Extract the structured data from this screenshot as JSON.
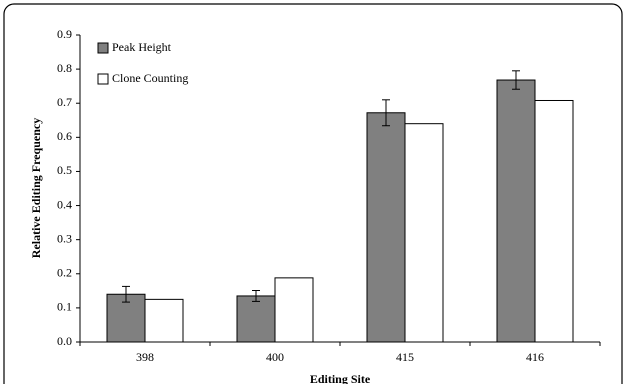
{
  "chart_data": {
    "type": "bar",
    "x_label": "Editing Site",
    "y_label": "Relative Editing Frequency",
    "categories": [
      "398",
      "400",
      "415",
      "416"
    ],
    "series": [
      {
        "name": "Peak Height",
        "color": "#808080",
        "values": [
          0.14,
          0.135,
          0.672,
          0.768
        ],
        "errors": [
          0.023,
          0.016,
          0.038,
          0.027
        ]
      },
      {
        "name": "Clone Counting",
        "color": "#ffffff",
        "values": [
          0.125,
          0.188,
          0.64,
          0.708
        ]
      }
    ],
    "ylim": [
      0,
      0.9
    ],
    "yticks": [
      {
        "value": 0,
        "label": "0.0"
      },
      0.1,
      0.2,
      0.3,
      0.4,
      0.5,
      0.6,
      0.7,
      0.8,
      0.9
    ],
    "legend": "top-left"
  }
}
